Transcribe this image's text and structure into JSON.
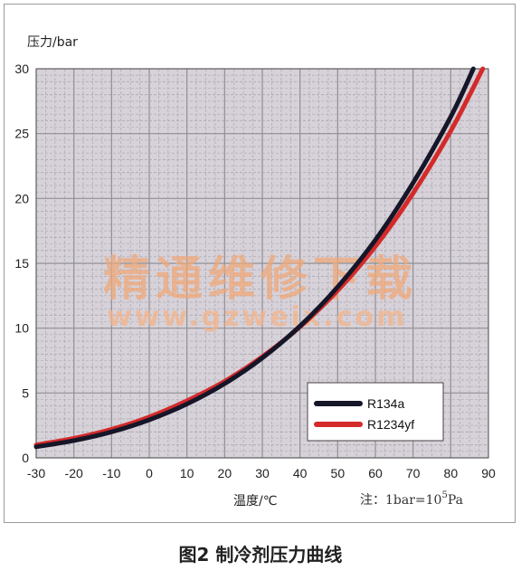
{
  "caption": "图2 制冷剂压力曲线",
  "watermark": {
    "line1": "精通维修下载",
    "line2": "www.gzweix.com"
  },
  "note_prefix": "注：1bar=10",
  "note_sup": "5",
  "note_suffix": "Pa",
  "chart_data": {
    "type": "line",
    "title": "",
    "ylabel": "压力/bar",
    "xlabel": "温度/℃",
    "xlim": [
      -30,
      90
    ],
    "ylim": [
      0,
      30
    ],
    "x_ticks": [
      -30,
      -20,
      -10,
      0,
      10,
      20,
      30,
      40,
      50,
      60,
      70,
      80,
      90
    ],
    "y_ticks": [
      0,
      5,
      10,
      15,
      20,
      25,
      30
    ],
    "grid": true,
    "legend_position": "bottom-right",
    "series": [
      {
        "name": "R134a",
        "color": "#161629",
        "x": [
          -30,
          -20,
          -10,
          0,
          10,
          20,
          30,
          40,
          50,
          60,
          70,
          80,
          86
        ],
        "y": [
          0.85,
          1.33,
          2.0,
          2.93,
          4.15,
          5.72,
          7.7,
          10.16,
          13.18,
          16.8,
          21.2,
          26.3,
          30.0
        ]
      },
      {
        "name": "R1234yf",
        "color": "#d42a2a",
        "x": [
          -30,
          -20,
          -10,
          0,
          10,
          20,
          30,
          40,
          50,
          60,
          70,
          80,
          88.5
        ],
        "y": [
          1.0,
          1.5,
          2.2,
          3.15,
          4.4,
          5.9,
          7.8,
          10.1,
          12.9,
          16.3,
          20.4,
          25.2,
          30.0
        ]
      }
    ]
  }
}
